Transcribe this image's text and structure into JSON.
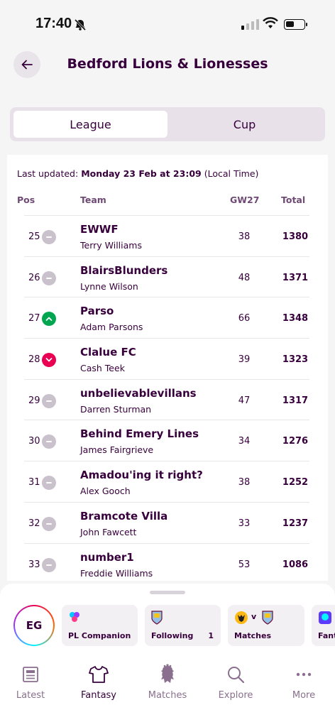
{
  "status_bar": {
    "time": "17:40"
  },
  "header": {
    "title": "Bedford Lions & Lionesses"
  },
  "tabs": [
    {
      "label": "League",
      "active": true
    },
    {
      "label": "Cup",
      "active": false
    }
  ],
  "table": {
    "last_updated_prefix": "Last updated: ",
    "last_updated_value": "Monday 23 Feb at 23:09",
    "last_updated_suffix": " (Local Time)",
    "columns": {
      "pos": "Pos",
      "team": "Team",
      "gw": "GW27",
      "total": "Total"
    },
    "rows": [
      {
        "pos": "25",
        "movement": "same",
        "team": "EWWF",
        "manager": "Terry Williams",
        "gw": "38",
        "total": "1380"
      },
      {
        "pos": "26",
        "movement": "same",
        "team": "BlairsBlunders",
        "manager": "Lynne Wilson",
        "gw": "48",
        "total": "1371"
      },
      {
        "pos": "27",
        "movement": "up",
        "team": "Parso",
        "manager": "Adam Parsons",
        "gw": "66",
        "total": "1348"
      },
      {
        "pos": "28",
        "movement": "down",
        "team": "Clalue FC",
        "manager": "Cash Teek",
        "gw": "39",
        "total": "1323"
      },
      {
        "pos": "29",
        "movement": "same",
        "team": "unbelievablevillans",
        "manager": "Darren Sturman",
        "gw": "47",
        "total": "1317"
      },
      {
        "pos": "30",
        "movement": "same",
        "team": "Behind Emery Lines",
        "manager": "James Fairgrieve",
        "gw": "34",
        "total": "1276"
      },
      {
        "pos": "31",
        "movement": "same",
        "team": "Amadou'ing it right?",
        "manager": "Alex Gooch",
        "gw": "38",
        "total": "1252"
      },
      {
        "pos": "32",
        "movement": "same",
        "team": "Bramcote Villa",
        "manager": "John Fawcett",
        "gw": "33",
        "total": "1237"
      },
      {
        "pos": "33",
        "movement": "same",
        "team": "number1",
        "manager": "Freddie Williams",
        "gw": "53",
        "total": "1086"
      }
    ]
  },
  "bottom_sheet": {
    "avatar_initials": "EG",
    "chips": [
      {
        "label": "PL Companion",
        "icon": "sparkle-icon"
      },
      {
        "label": "Following",
        "count": "1",
        "icon": "villa-crest-icon"
      },
      {
        "label": "Matches",
        "vs": "v",
        "icon": "wolves-crest-icon"
      },
      {
        "label": "Fant",
        "icon": "pl-lion-icon"
      }
    ]
  },
  "nav": [
    {
      "label": "Latest",
      "icon": "newspaper-icon",
      "active": false
    },
    {
      "label": "Fantasy",
      "icon": "shirt-icon",
      "active": true
    },
    {
      "label": "Matches",
      "icon": "pl-lion-icon",
      "active": false
    },
    {
      "label": "Explore",
      "icon": "search-icon",
      "active": false
    },
    {
      "label": "More",
      "icon": "more-dots-icon",
      "active": false
    }
  ],
  "colors": {
    "primary": "#37003c",
    "up": "#00a550",
    "down": "#e90052",
    "neutral": "#c9c1cc"
  }
}
